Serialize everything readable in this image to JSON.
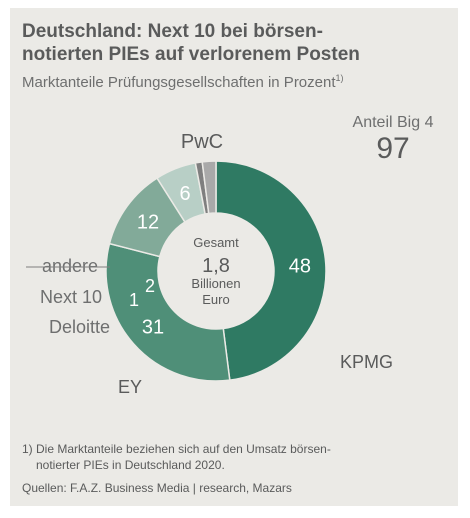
{
  "header": {
    "title": "Deutschland: Next 10 bei börsen-notierten PIEs auf verlorenem Posten",
    "title_line1": "Deutschland: Next 10 bei börsen-",
    "title_line2": "notierten PIEs auf verlorenem Posten",
    "subtitle": "Marktanteile Prüfungsgesellschaften in Prozent",
    "subtitle_note": "1)"
  },
  "big4": {
    "label": "Anteil Big 4",
    "value": "97"
  },
  "center": {
    "line1": "Gesamt",
    "line2": "1,8",
    "line3": "Billionen",
    "line4": "Euro"
  },
  "chart_data": {
    "type": "pie",
    "variant": "donut",
    "slices": [
      {
        "label": "PwC",
        "value": 48,
        "value_label": "48",
        "color": "#2f7a63"
      },
      {
        "label": "KPMG",
        "value": 31,
        "value_label": "31",
        "color": "#4f8f78"
      },
      {
        "label": "EY",
        "value": 12,
        "value_label": "12",
        "color": "#82aa99"
      },
      {
        "label": "Deloitte",
        "value": 6,
        "value_label": "6",
        "color": "#b8cfc6"
      },
      {
        "label": "Next 10",
        "value": 1,
        "value_label": "1",
        "color": "#7f7f7f"
      },
      {
        "label": "andere",
        "value": 2,
        "value_label": "2",
        "color": "#a9a9a9"
      }
    ],
    "center_text": [
      "Gesamt",
      "1,8",
      "Billionen",
      "Euro"
    ],
    "annotation": [
      "Anteil Big 4",
      "97"
    ]
  },
  "footnote": {
    "number": "1)",
    "line1": "Die Marktanteile beziehen sich auf den Umsatz börsen-",
    "line2": "notierter PIEs in Deutschland 2020."
  },
  "sources": "Quellen: F.A.Z. Business Media | research, Mazars"
}
